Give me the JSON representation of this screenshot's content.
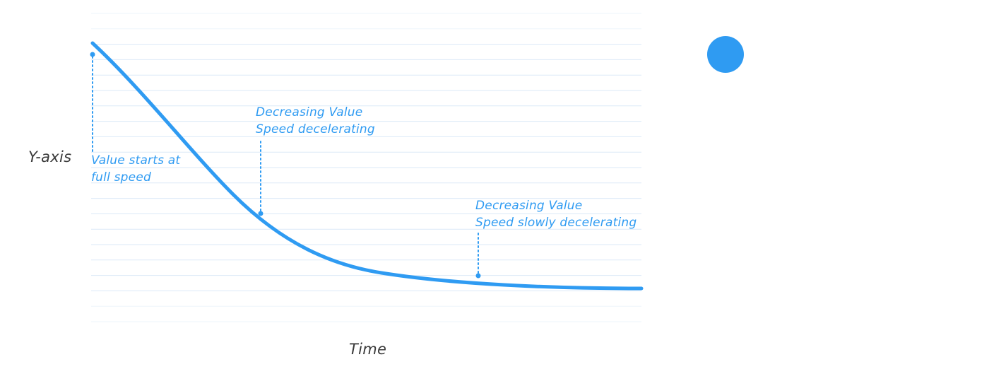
{
  "diagram": {
    "y_axis_label": "Y-axis",
    "x_axis_label": "Time",
    "annotations": [
      {
        "line1": "Value starts at",
        "line2": "full speed"
      },
      {
        "line1": "Decreasing Value",
        "line2": "Speed decelerating"
      },
      {
        "line1": "Decreasing Value",
        "line2": "Speed slowly decelerating"
      }
    ],
    "colors": {
      "curve": "#2f9bf2",
      "gridline": "#dbe9f7",
      "annotation": "#2f9bf2",
      "marker": "#2f9bf2"
    }
  }
}
